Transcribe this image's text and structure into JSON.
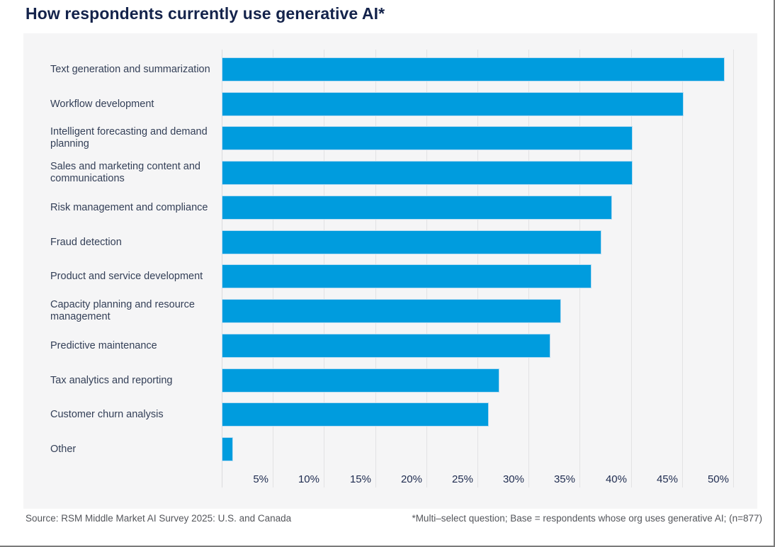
{
  "title": "How respondents currently use generative AI*",
  "footer": {
    "source": "Source: RSM Middle Market AI Survey 2025: U.S. and Canada",
    "note": "*Multi–select question; Base = respondents whose org uses generative AI; (n=877)"
  },
  "chart_data": {
    "type": "bar",
    "orientation": "horizontal",
    "title": "How respondents currently use generative AI*",
    "categories": [
      "Text generation and summarization",
      "Workflow development",
      "Intelligent forecasting and demand planning",
      "Sales and marketing content and communications",
      "Risk management and compliance",
      "Fraud detection",
      "Product and service development",
      "Capacity planning and resource management",
      "Predictive maintenance",
      "Tax analytics and reporting",
      "Customer churn analysis",
      "Other"
    ],
    "values": [
      49,
      45,
      40,
      40,
      38,
      37,
      36,
      33,
      32,
      27,
      26,
      1
    ],
    "unit": "%",
    "xlim": [
      0,
      50
    ],
    "x_tick_step": 5,
    "x_ticks": [
      "5%",
      "10%",
      "15%",
      "20%",
      "25%",
      "30%",
      "35%",
      "40%",
      "45%",
      "50%"
    ],
    "grid": true,
    "legend": "none",
    "colors": {
      "bar": "#009CDE",
      "panel_bg": "#F5F5F6",
      "gridline": "#E2E2E4",
      "title": "#14234B",
      "category_label": "#333F57",
      "tick_label": "#1E2B4F",
      "footer_text": "#54565B"
    }
  }
}
